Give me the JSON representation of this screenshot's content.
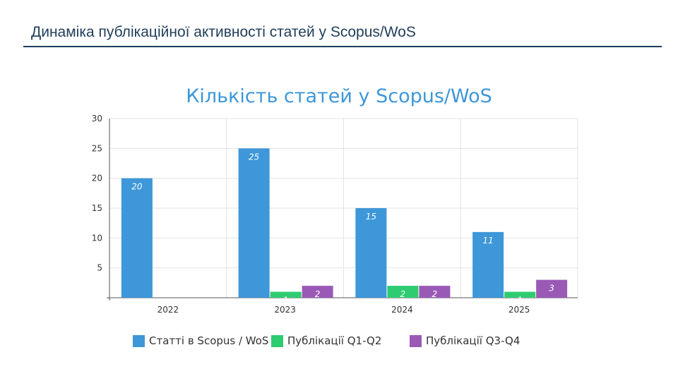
{
  "slide": {
    "title": "Динаміка публікаційної активності статей у Scopus/WoS"
  },
  "chart_data": {
    "type": "bar",
    "title": "Кількість статей у Scopus/WoS",
    "categories": [
      "2022",
      "2023",
      "2024",
      "2025"
    ],
    "series": [
      {
        "name": "Статті в Scopus / WoS",
        "color": "#3d97d8",
        "values": [
          20,
          25,
          15,
          11
        ]
      },
      {
        "name": "Публікації Q1-Q2",
        "color": "#2ecc71",
        "values": [
          0,
          1,
          2,
          1
        ]
      },
      {
        "name": "Публікації Q3-Q4",
        "color": "#9b59b6",
        "values": [
          0,
          2,
          2,
          3
        ]
      }
    ],
    "ylim": [
      0,
      30
    ],
    "yticks": [
      5,
      10,
      15,
      20,
      25,
      30
    ],
    "grid": true,
    "legend_position": "bottom",
    "data_labels": true
  }
}
